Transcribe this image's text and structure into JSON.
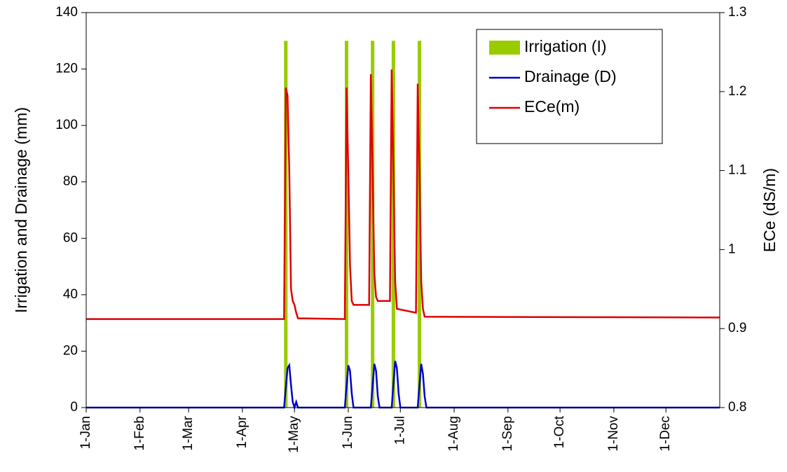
{
  "chart_data": {
    "type": "combo",
    "y_label": "Irrigation and Drainage (mm)",
    "y2_label": "ECe (dS/m)",
    "xlim": [
      0,
      365
    ],
    "xticks": [
      {
        "value": 0,
        "label": "1-Jan"
      },
      {
        "value": 31,
        "label": "1-Feb"
      },
      {
        "value": 59,
        "label": "1-Mar"
      },
      {
        "value": 90,
        "label": "1-Apr"
      },
      {
        "value": 120,
        "label": "1-May"
      },
      {
        "value": 151,
        "label": "1-Jun"
      },
      {
        "value": 181,
        "label": "1-Jul"
      },
      {
        "value": 212,
        "label": "1-Aug"
      },
      {
        "value": 243,
        "label": "1-Sep"
      },
      {
        "value": 273,
        "label": "1-Oct"
      },
      {
        "value": 304,
        "label": "1-Nov"
      },
      {
        "value": 334,
        "label": "1-Dec"
      }
    ],
    "ylim": [
      0,
      140
    ],
    "yticks": [
      0,
      20,
      40,
      60,
      80,
      100,
      120,
      140
    ],
    "y2lim": [
      0.8,
      1.3
    ],
    "y2ticks": [
      0.8,
      0.9,
      1,
      1.1,
      1.2,
      1.3
    ],
    "legend": "upper right",
    "series": [
      {
        "name": "Irrigation (I)",
        "type": "bar",
        "color": "#99cc00",
        "x": [
          115,
          150,
          165,
          177,
          192
        ],
        "values": [
          130,
          130,
          130,
          130,
          130
        ]
      },
      {
        "name": "Drainage (D)",
        "type": "line",
        "color": "#0000cc",
        "x": [
          0,
          114,
          116,
          117,
          118,
          119,
          120,
          121,
          122,
          149,
          151,
          152,
          153,
          154,
          164,
          166,
          167,
          168,
          169,
          176,
          178,
          179,
          180,
          181,
          191,
          193,
          194,
          195,
          196,
          365
        ],
        "values": [
          0,
          0,
          14,
          15,
          8,
          2,
          0,
          2,
          0,
          0,
          15,
          13,
          5,
          0,
          0,
          15.5,
          13,
          4,
          0,
          0,
          16.5,
          14,
          5,
          0,
          0,
          15.5,
          12,
          4,
          0,
          0
        ]
      },
      {
        "name": "ECe(m)",
        "type": "line",
        "color": "#e00000",
        "axis": "y2",
        "x": [
          0,
          114,
          115,
          116,
          117,
          118,
          119,
          120,
          121,
          122,
          149,
          150,
          151,
          152,
          153,
          154,
          163,
          164,
          165,
          166,
          167,
          168,
          175,
          176,
          177,
          178,
          179,
          190,
          191,
          192,
          193,
          194,
          195,
          365
        ],
        "values": [
          0.912,
          0.912,
          1.205,
          1.195,
          1.1,
          0.95,
          0.935,
          0.93,
          0.92,
          0.913,
          0.912,
          1.205,
          1.1,
          0.98,
          0.935,
          0.93,
          0.93,
          1.222,
          1.1,
          0.97,
          0.94,
          0.935,
          0.935,
          1.228,
          1.1,
          0.96,
          0.925,
          0.92,
          1.21,
          1.1,
          0.96,
          0.925,
          0.915,
          0.914
        ]
      }
    ]
  }
}
